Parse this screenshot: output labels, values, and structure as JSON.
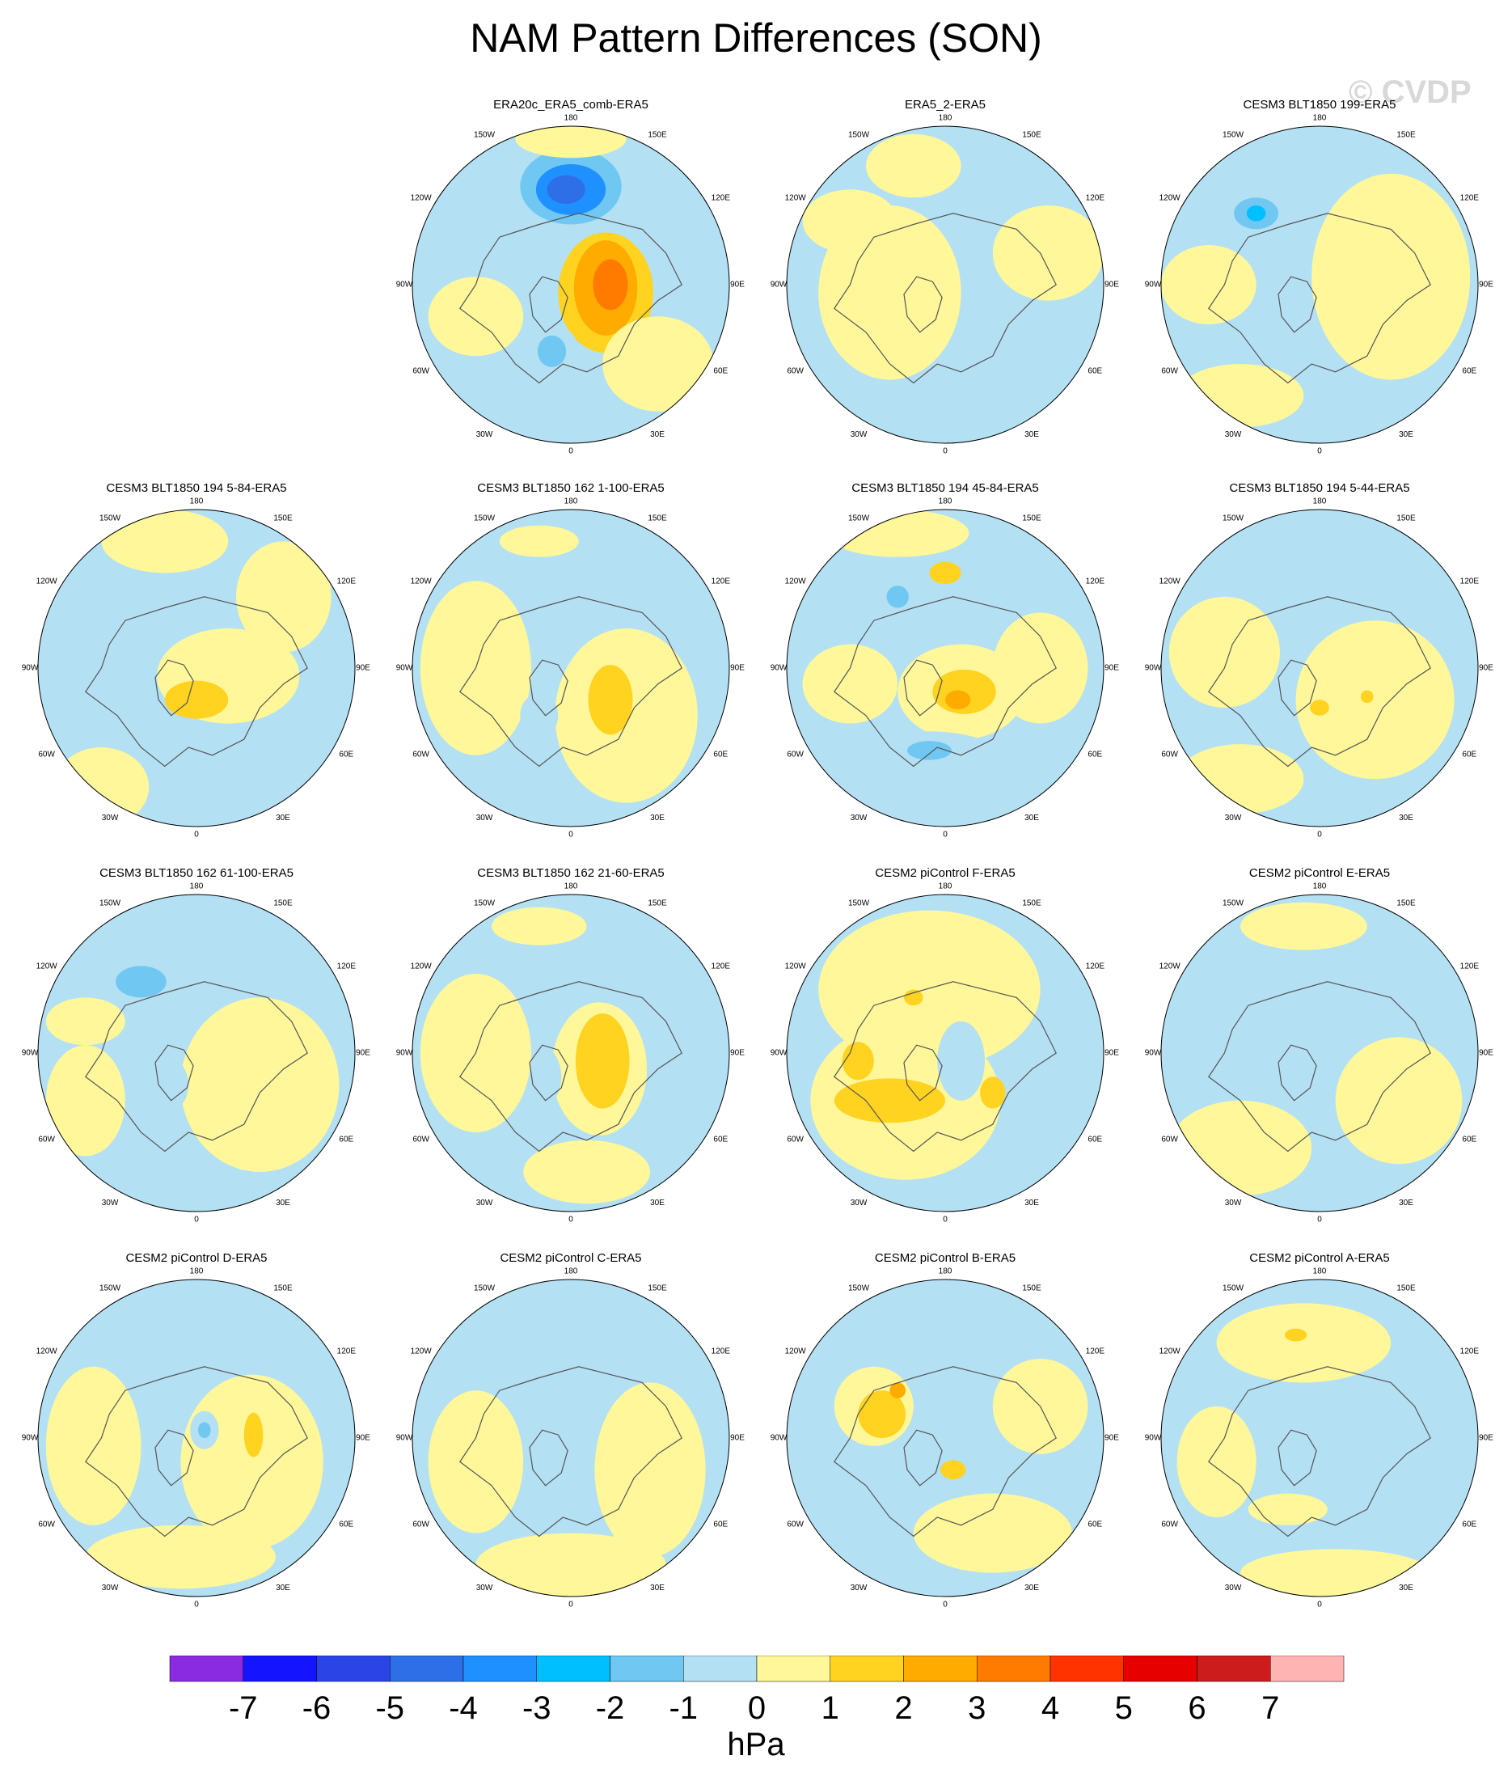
{
  "title": "NAM Pattern Differences (SON)",
  "watermark": "© CVDP",
  "units": "hPa",
  "longitude_labels": [
    "180",
    "150E",
    "120E",
    "90E",
    "60E",
    "30E",
    "0",
    "30W",
    "60W",
    "90W",
    "120W",
    "150W"
  ],
  "colors": {
    "levels": [
      "-7",
      "-6",
      "-5",
      "-4",
      "-3",
      "-2",
      "-1",
      "0",
      "1",
      "2",
      "3",
      "4",
      "5",
      "6",
      "7"
    ],
    "fills": [
      "#8a2be2",
      "#1414ff",
      "#2a44e6",
      "#2e6fe8",
      "#1e90ff",
      "#00bfff",
      "#70c8f2",
      "#b4e0f4",
      "#fff79a",
      "#ffd320",
      "#ffab00",
      "#ff7b00",
      "#ff3300",
      "#e60000",
      "#cc1c1c",
      "#ffb4b4"
    ],
    "coast": "#555555"
  },
  "panels": [
    {
      "title": "ERA20c_ERA5_comb-ERA5",
      "blobs": [
        {
          "ax": 0,
          "ay": -0.62,
          "rx": 0.32,
          "ry": 0.24,
          "level": -2
        },
        {
          "ax": 0,
          "ay": -0.6,
          "rx": 0.22,
          "ry": 0.16,
          "level": -4
        },
        {
          "ax": -0.03,
          "ay": -0.6,
          "rx": 0.12,
          "ry": 0.09,
          "level": -5
        },
        {
          "ax": 0.22,
          "ay": 0.05,
          "rx": 0.3,
          "ry": 0.38,
          "level": 1
        },
        {
          "ax": 0.22,
          "ay": 0.02,
          "rx": 0.2,
          "ry": 0.3,
          "level": 2
        },
        {
          "ax": 0.25,
          "ay": 0,
          "rx": 0.11,
          "ry": 0.16,
          "level": 3
        },
        {
          "ax": -0.15,
          "ay": 0.42,
          "rx": 0.2,
          "ry": 0.18,
          "level": -1
        },
        {
          "ax": -0.12,
          "ay": 0.42,
          "rx": 0.09,
          "ry": 0.1,
          "level": -2
        },
        {
          "ax": -0.6,
          "ay": 0.2,
          "rx": 0.3,
          "ry": 0.25,
          "level": 0
        },
        {
          "ax": 0.55,
          "ay": 0.5,
          "rx": 0.35,
          "ry": 0.3,
          "level": 0
        },
        {
          "ax": 0,
          "ay": -0.92,
          "rx": 0.35,
          "ry": 0.12,
          "level": 0
        }
      ]
    },
    {
      "title": "ERA5_2-ERA5",
      "blobs": [
        {
          "ax": -0.35,
          "ay": 0.05,
          "rx": 0.45,
          "ry": 0.55,
          "level": 0
        },
        {
          "ax": -0.6,
          "ay": -0.4,
          "rx": 0.3,
          "ry": 0.2,
          "level": 0
        },
        {
          "ax": 0.65,
          "ay": -0.2,
          "rx": 0.35,
          "ry": 0.3,
          "level": 0
        },
        {
          "ax": -0.2,
          "ay": -0.75,
          "rx": 0.3,
          "ry": 0.2,
          "level": 0
        }
      ]
    },
    {
      "title": "CESM3 BLT1850 199-ERA5",
      "blobs": [
        {
          "ax": -0.4,
          "ay": -0.45,
          "rx": 0.28,
          "ry": 0.2,
          "level": -1
        },
        {
          "ax": -0.4,
          "ay": -0.45,
          "rx": 0.14,
          "ry": 0.1,
          "level": -2
        },
        {
          "ax": -0.4,
          "ay": -0.45,
          "rx": 0.06,
          "ry": 0.05,
          "level": -3
        },
        {
          "ax": 0.45,
          "ay": -0.05,
          "rx": 0.5,
          "ry": 0.65,
          "level": 0
        },
        {
          "ax": -0.7,
          "ay": 0,
          "rx": 0.3,
          "ry": 0.25,
          "level": 0
        },
        {
          "ax": -0.5,
          "ay": 0.7,
          "rx": 0.4,
          "ry": 0.2,
          "level": 0
        }
      ]
    },
    {
      "title": "CESM3 BLT1850 194 5-84-ERA5",
      "blobs": [
        {
          "ax": -0.2,
          "ay": -0.8,
          "rx": 0.4,
          "ry": 0.2,
          "level": 0
        },
        {
          "ax": 0.55,
          "ay": -0.45,
          "rx": 0.3,
          "ry": 0.35,
          "level": 0
        },
        {
          "ax": 0.2,
          "ay": 0.05,
          "rx": 0.45,
          "ry": 0.3,
          "level": 0
        },
        {
          "ax": 0,
          "ay": 0.2,
          "rx": 0.2,
          "ry": 0.12,
          "level": 1
        },
        {
          "ax": -0.4,
          "ay": -0.35,
          "rx": 0.14,
          "ry": 0.12,
          "level": -1
        },
        {
          "ax": -0.15,
          "ay": 0.5,
          "rx": 0.28,
          "ry": 0.1,
          "level": -1
        },
        {
          "ax": -0.6,
          "ay": 0.75,
          "rx": 0.3,
          "ry": 0.25,
          "level": 0
        }
      ]
    },
    {
      "title": "CESM3 BLT1850 162 1-100-ERA5",
      "blobs": [
        {
          "ax": 0.35,
          "ay": 0.3,
          "rx": 0.45,
          "ry": 0.55,
          "level": 0
        },
        {
          "ax": 0.25,
          "ay": 0.2,
          "rx": 0.14,
          "ry": 0.22,
          "level": 1
        },
        {
          "ax": -0.6,
          "ay": 0,
          "rx": 0.35,
          "ry": 0.55,
          "level": 0
        },
        {
          "ax": -0.2,
          "ay": -0.8,
          "rx": 0.25,
          "ry": 0.1,
          "level": 0
        },
        {
          "ax": -0.2,
          "ay": 0.3,
          "rx": 0.12,
          "ry": 0.14,
          "level": -1
        }
      ]
    },
    {
      "title": "CESM3 BLT1850 194 45-84-ERA5",
      "blobs": [
        {
          "ax": -0.3,
          "ay": -0.45,
          "rx": 0.2,
          "ry": 0.16,
          "level": -1
        },
        {
          "ax": -0.3,
          "ay": -0.45,
          "rx": 0.07,
          "ry": 0.07,
          "level": -2
        },
        {
          "ax": 0.1,
          "ay": 0.15,
          "rx": 0.4,
          "ry": 0.3,
          "level": 0
        },
        {
          "ax": 0.12,
          "ay": 0.15,
          "rx": 0.2,
          "ry": 0.14,
          "level": 1
        },
        {
          "ax": 0.08,
          "ay": 0.2,
          "rx": 0.08,
          "ry": 0.06,
          "level": 2
        },
        {
          "ax": -0.1,
          "ay": 0.52,
          "rx": 0.4,
          "ry": 0.12,
          "level": -1
        },
        {
          "ax": -0.1,
          "ay": 0.52,
          "rx": 0.14,
          "ry": 0.06,
          "level": -2
        },
        {
          "ax": -0.3,
          "ay": -0.85,
          "rx": 0.45,
          "ry": 0.15,
          "level": 0
        },
        {
          "ax": 0,
          "ay": -0.6,
          "rx": 0.1,
          "ry": 0.07,
          "level": 1
        },
        {
          "ax": -0.6,
          "ay": 0.1,
          "rx": 0.3,
          "ry": 0.25,
          "level": 0
        },
        {
          "ax": 0.6,
          "ay": 0,
          "rx": 0.3,
          "ry": 0.35,
          "level": 0
        }
      ]
    },
    {
      "title": "CESM3 BLT1850 194 5-44-ERA5",
      "blobs": [
        {
          "ax": 0.35,
          "ay": 0.2,
          "rx": 0.5,
          "ry": 0.5,
          "level": 0
        },
        {
          "ax": -0.6,
          "ay": -0.1,
          "rx": 0.35,
          "ry": 0.35,
          "level": 0
        },
        {
          "ax": -0.5,
          "ay": 0.7,
          "rx": 0.4,
          "ry": 0.22,
          "level": 0
        },
        {
          "ax": 0.05,
          "ay": -0.35,
          "rx": 0.09,
          "ry": 0.08,
          "level": -1
        },
        {
          "ax": 0,
          "ay": 0.25,
          "rx": 0.06,
          "ry": 0.05,
          "level": 1
        },
        {
          "ax": 0.3,
          "ay": 0.18,
          "rx": 0.04,
          "ry": 0.04,
          "level": 1
        }
      ]
    },
    {
      "title": "CESM3 BLT1850 162 61-100-ERA5",
      "blobs": [
        {
          "ax": -0.4,
          "ay": -0.45,
          "rx": 0.32,
          "ry": 0.22,
          "level": -1
        },
        {
          "ax": -0.35,
          "ay": -0.45,
          "rx": 0.16,
          "ry": 0.1,
          "level": -2
        },
        {
          "ax": 0.4,
          "ay": 0.2,
          "rx": 0.5,
          "ry": 0.55,
          "level": 0
        },
        {
          "ax": -0.7,
          "ay": 0.3,
          "rx": 0.25,
          "ry": 0.35,
          "level": 0
        },
        {
          "ax": -0.7,
          "ay": -0.2,
          "rx": 0.25,
          "ry": 0.15,
          "level": 0
        },
        {
          "ax": -0.2,
          "ay": 0.2,
          "rx": 0.15,
          "ry": 0.18,
          "level": -1
        }
      ]
    },
    {
      "title": "CESM3 BLT1850 162 21-60-ERA5",
      "blobs": [
        {
          "ax": 0.18,
          "ay": 0.1,
          "rx": 0.3,
          "ry": 0.42,
          "level": 0
        },
        {
          "ax": 0.2,
          "ay": 0.05,
          "rx": 0.17,
          "ry": 0.3,
          "level": 1
        },
        {
          "ax": -0.2,
          "ay": 0.15,
          "rx": 0.14,
          "ry": 0.2,
          "level": -1
        },
        {
          "ax": -0.6,
          "ay": 0,
          "rx": 0.35,
          "ry": 0.5,
          "level": 0
        },
        {
          "ax": -0.2,
          "ay": -0.8,
          "rx": 0.3,
          "ry": 0.12,
          "level": 0
        },
        {
          "ax": 0.1,
          "ay": 0.75,
          "rx": 0.4,
          "ry": 0.2,
          "level": 0
        }
      ]
    },
    {
      "title": "CESM2 piControl F-ERA5",
      "blobs": [
        {
          "ax": -0.1,
          "ay": -0.4,
          "rx": 0.7,
          "ry": 0.5,
          "level": 0
        },
        {
          "ax": -0.25,
          "ay": 0.3,
          "rx": 0.6,
          "ry": 0.5,
          "level": 0
        },
        {
          "ax": -0.35,
          "ay": 0.3,
          "rx": 0.35,
          "ry": 0.14,
          "level": 1
        },
        {
          "ax": -0.55,
          "ay": 0.05,
          "rx": 0.1,
          "ry": 0.12,
          "level": 1
        },
        {
          "ax": 0.3,
          "ay": 0.25,
          "rx": 0.08,
          "ry": 0.1,
          "level": 1
        },
        {
          "ax": -0.2,
          "ay": -0.35,
          "rx": 0.06,
          "ry": 0.05,
          "level": 1
        },
        {
          "ax": 0.1,
          "ay": 0.05,
          "rx": 0.15,
          "ry": 0.25,
          "level": -1
        }
      ]
    },
    {
      "title": "CESM2 piControl E-ERA5",
      "blobs": [
        {
          "ax": -0.15,
          "ay": 0.1,
          "rx": 0.25,
          "ry": 0.3,
          "level": -1
        },
        {
          "ax": -0.1,
          "ay": -0.8,
          "rx": 0.4,
          "ry": 0.15,
          "level": 0
        },
        {
          "ax": -0.5,
          "ay": 0.6,
          "rx": 0.45,
          "ry": 0.3,
          "level": 0
        },
        {
          "ax": 0.5,
          "ay": 0.3,
          "rx": 0.4,
          "ry": 0.4,
          "level": 0
        },
        {
          "ax": 0.25,
          "ay": 0.18,
          "rx": 0.06,
          "ry": 0.06,
          "level": 0
        }
      ]
    },
    {
      "title": "CESM2 piControl D-ERA5",
      "blobs": [
        {
          "ax": -0.2,
          "ay": -0.5,
          "rx": 0.35,
          "ry": 0.15,
          "level": -1
        },
        {
          "ax": 0.35,
          "ay": 0.15,
          "rx": 0.45,
          "ry": 0.55,
          "level": 0
        },
        {
          "ax": -0.65,
          "ay": 0.05,
          "rx": 0.3,
          "ry": 0.5,
          "level": 0
        },
        {
          "ax": -0.1,
          "ay": 0.75,
          "rx": 0.6,
          "ry": 0.2,
          "level": 0
        },
        {
          "ax": 0.05,
          "ay": -0.05,
          "rx": 0.09,
          "ry": 0.12,
          "level": -1
        },
        {
          "ax": 0.05,
          "ay": -0.05,
          "rx": 0.04,
          "ry": 0.05,
          "level": -2
        },
        {
          "ax": 0.36,
          "ay": -0.02,
          "rx": 0.06,
          "ry": 0.14,
          "level": 1
        }
      ]
    },
    {
      "title": "CESM2 piControl C-ERA5",
      "blobs": [
        {
          "ax": 0.05,
          "ay": 0.1,
          "rx": 0.35,
          "ry": 0.5,
          "level": -1
        },
        {
          "ax": -0.05,
          "ay": -0.45,
          "rx": 0.2,
          "ry": 0.12,
          "level": -1
        },
        {
          "ax": 0.5,
          "ay": 0.2,
          "rx": 0.35,
          "ry": 0.55,
          "level": 0
        },
        {
          "ax": -0.6,
          "ay": 0.15,
          "rx": 0.3,
          "ry": 0.45,
          "level": 0
        },
        {
          "ax": 0,
          "ay": 0.8,
          "rx": 0.6,
          "ry": 0.2,
          "level": 0
        }
      ]
    },
    {
      "title": "CESM2 piControl B-ERA5",
      "blobs": [
        {
          "ax": -0.45,
          "ay": -0.2,
          "rx": 0.25,
          "ry": 0.25,
          "level": 0
        },
        {
          "ax": -0.4,
          "ay": -0.15,
          "rx": 0.15,
          "ry": 0.15,
          "level": 1
        },
        {
          "ax": -0.3,
          "ay": -0.3,
          "rx": 0.05,
          "ry": 0.05,
          "level": 2
        },
        {
          "ax": 0.05,
          "ay": 0.2,
          "rx": 0.08,
          "ry": 0.06,
          "level": 1
        },
        {
          "ax": -0.3,
          "ay": -0.5,
          "rx": 0.09,
          "ry": 0.06,
          "level": -1
        },
        {
          "ax": 0.3,
          "ay": 0.6,
          "rx": 0.5,
          "ry": 0.25,
          "level": 0
        },
        {
          "ax": 0.6,
          "ay": -0.2,
          "rx": 0.3,
          "ry": 0.3,
          "level": 0
        }
      ]
    },
    {
      "title": "CESM2 piControl A-ERA5",
      "blobs": [
        {
          "ax": -0.1,
          "ay": -0.6,
          "rx": 0.55,
          "ry": 0.25,
          "level": 0
        },
        {
          "ax": -0.15,
          "ay": -0.65,
          "rx": 0.07,
          "ry": 0.04,
          "level": 1
        },
        {
          "ax": -0.65,
          "ay": 0.15,
          "rx": 0.25,
          "ry": 0.35,
          "level": 0
        },
        {
          "ax": -0.2,
          "ay": 0.45,
          "rx": 0.25,
          "ry": 0.1,
          "level": 0
        },
        {
          "ax": 0.1,
          "ay": 0.85,
          "rx": 0.6,
          "ry": 0.15,
          "level": 0
        }
      ]
    }
  ]
}
